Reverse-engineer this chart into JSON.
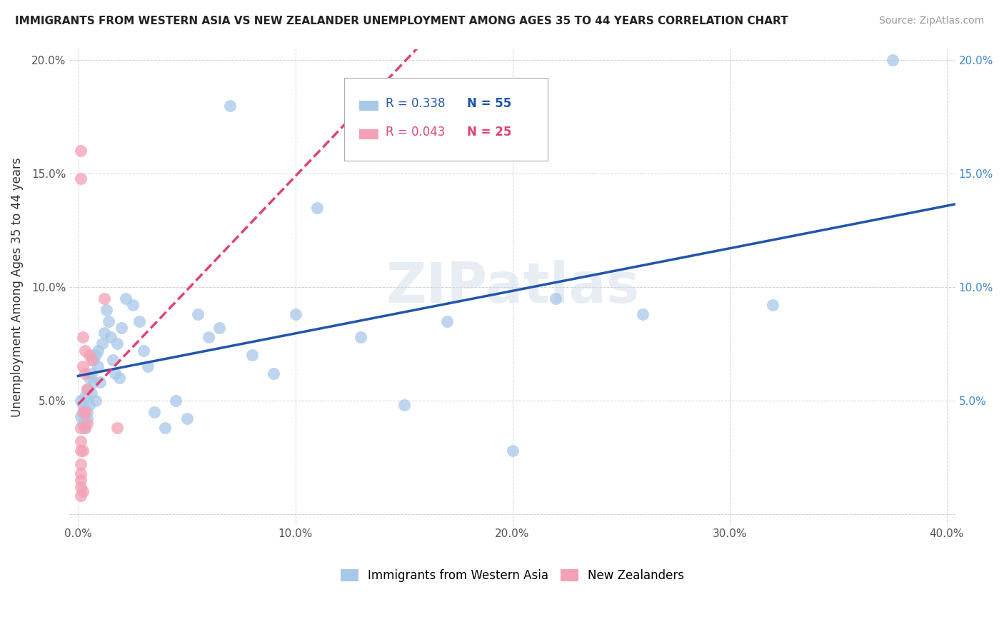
{
  "title": "IMMIGRANTS FROM WESTERN ASIA VS NEW ZEALANDER UNEMPLOYMENT AMONG AGES 35 TO 44 YEARS CORRELATION CHART",
  "source": "Source: ZipAtlas.com",
  "ylabel": "Unemployment Among Ages 35 to 44 years",
  "xlim": [
    -0.004,
    0.404
  ],
  "ylim": [
    -0.005,
    0.205
  ],
  "xticks": [
    0.0,
    0.1,
    0.2,
    0.3,
    0.4
  ],
  "xtick_labels": [
    "0.0%",
    "10.0%",
    "20.0%",
    "30.0%",
    "40.0%"
  ],
  "yticks": [
    0.0,
    0.05,
    0.1,
    0.15,
    0.2
  ],
  "ytick_labels_left": [
    "",
    "5.0%",
    "10.0%",
    "15.0%",
    "20.0%"
  ],
  "ytick_labels_right": [
    "",
    "5.0%",
    "10.0%",
    "15.0%",
    "20.0%"
  ],
  "legend_r1": "R = 0.338",
  "legend_n1": "N = 55",
  "legend_r2": "R = 0.043",
  "legend_n2": "N = 25",
  "color_blue": "#a8c8e8",
  "color_pink": "#f4a0b5",
  "line_blue": "#2255aa",
  "line_pink": "#dd4477",
  "blue_scatter_x": [
    0.001,
    0.001,
    0.002,
    0.002,
    0.003,
    0.003,
    0.004,
    0.004,
    0.004,
    0.005,
    0.005,
    0.006,
    0.006,
    0.007,
    0.007,
    0.008,
    0.008,
    0.009,
    0.009,
    0.01,
    0.011,
    0.012,
    0.013,
    0.014,
    0.015,
    0.016,
    0.017,
    0.018,
    0.019,
    0.02,
    0.022,
    0.025,
    0.028,
    0.03,
    0.032,
    0.035,
    0.04,
    0.045,
    0.05,
    0.055,
    0.06,
    0.065,
    0.07,
    0.08,
    0.09,
    0.1,
    0.11,
    0.13,
    0.15,
    0.17,
    0.2,
    0.22,
    0.26,
    0.32,
    0.375
  ],
  "blue_scatter_y": [
    0.05,
    0.043,
    0.048,
    0.04,
    0.052,
    0.038,
    0.045,
    0.055,
    0.042,
    0.048,
    0.06,
    0.053,
    0.062,
    0.058,
    0.068,
    0.07,
    0.05,
    0.065,
    0.072,
    0.058,
    0.075,
    0.08,
    0.09,
    0.085,
    0.078,
    0.068,
    0.062,
    0.075,
    0.06,
    0.082,
    0.095,
    0.092,
    0.085,
    0.072,
    0.065,
    0.045,
    0.038,
    0.05,
    0.042,
    0.088,
    0.078,
    0.082,
    0.18,
    0.07,
    0.062,
    0.088,
    0.135,
    0.078,
    0.048,
    0.085,
    0.028,
    0.095,
    0.088,
    0.092,
    0.2
  ],
  "pink_scatter_x": [
    0.001,
    0.001,
    0.001,
    0.001,
    0.001,
    0.001,
    0.001,
    0.001,
    0.001,
    0.001,
    0.002,
    0.002,
    0.002,
    0.002,
    0.002,
    0.003,
    0.003,
    0.003,
    0.003,
    0.004,
    0.004,
    0.005,
    0.006,
    0.012,
    0.018
  ],
  "pink_scatter_y": [
    0.16,
    0.148,
    0.038,
    0.032,
    0.028,
    0.022,
    0.018,
    0.015,
    0.012,
    0.008,
    0.078,
    0.065,
    0.045,
    0.028,
    0.01,
    0.072,
    0.062,
    0.045,
    0.038,
    0.055,
    0.04,
    0.07,
    0.068,
    0.095,
    0.038
  ]
}
